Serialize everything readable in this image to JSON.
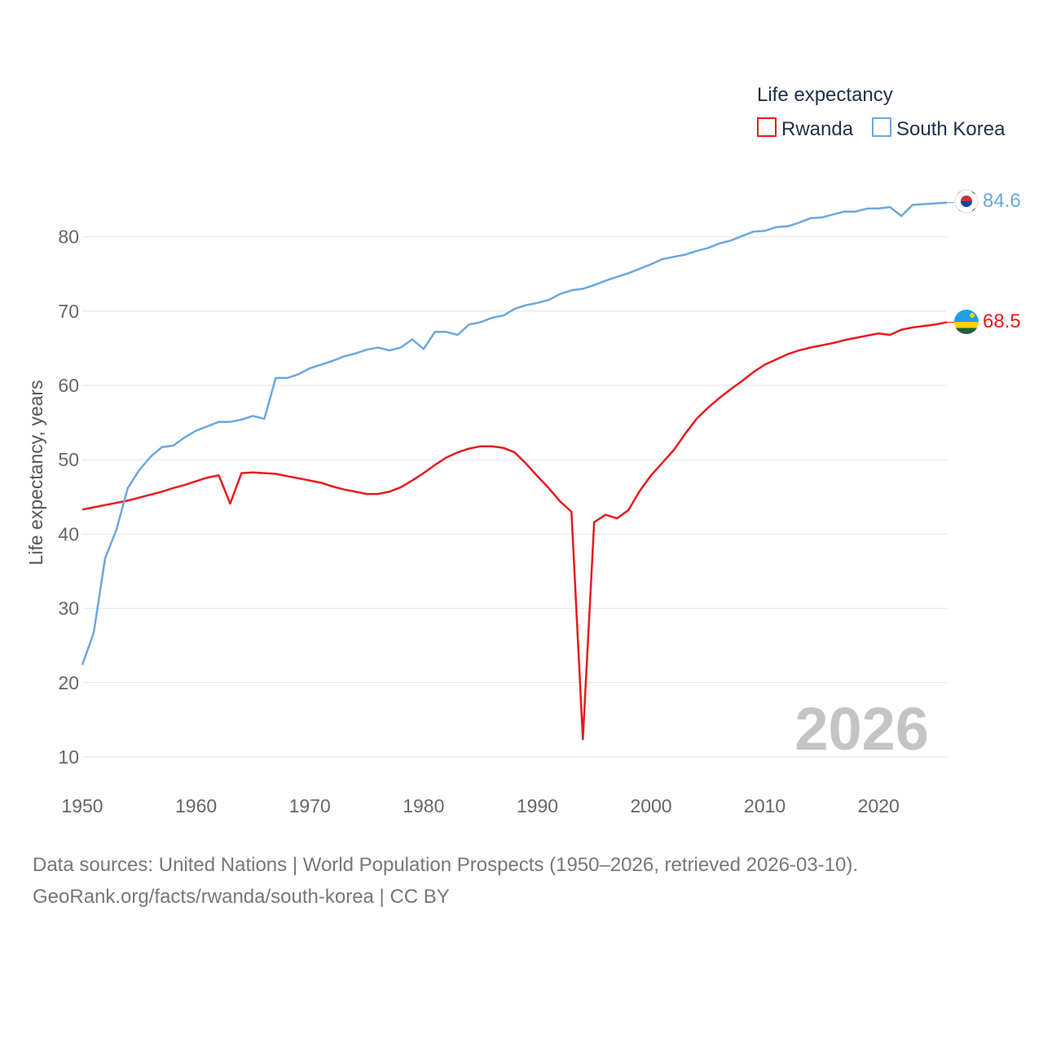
{
  "legend": {
    "title": "Life expectancy",
    "items": [
      {
        "label": "Rwanda",
        "color": "#e8191e"
      },
      {
        "label": "South Korea",
        "color": "#6aa8e0"
      }
    ]
  },
  "footer": {
    "line1": "Data sources: United Nations | World Population Prospects (1950–2026, retrieved 2026-03-10).",
    "line2": "GeoRank.org/facts/rwanda/south-korea | CC BY"
  },
  "chart_data": {
    "type": "line",
    "title": "Life expectancy",
    "xlabel": "",
    "ylabel": "Life expectancy, years",
    "xlim": [
      1950,
      2026
    ],
    "ylim": [
      10,
      90
    ],
    "x_ticks": [
      1950,
      1960,
      1970,
      1980,
      1990,
      2000,
      2010,
      2020
    ],
    "y_ticks": [
      10,
      20,
      30,
      40,
      50,
      60,
      70,
      80
    ],
    "grid": true,
    "year_marker": "2026",
    "x": [
      1950,
      1951,
      1952,
      1953,
      1954,
      1955,
      1956,
      1957,
      1958,
      1959,
      1960,
      1961,
      1962,
      1963,
      1964,
      1965,
      1966,
      1967,
      1968,
      1969,
      1970,
      1971,
      1972,
      1973,
      1974,
      1975,
      1976,
      1977,
      1978,
      1979,
      1980,
      1981,
      1982,
      1983,
      1984,
      1985,
      1986,
      1987,
      1988,
      1989,
      1990,
      1991,
      1992,
      1993,
      1994,
      1995,
      1996,
      1997,
      1998,
      1999,
      2000,
      2001,
      2002,
      2003,
      2004,
      2005,
      2006,
      2007,
      2008,
      2009,
      2010,
      2011,
      2012,
      2013,
      2014,
      2015,
      2016,
      2017,
      2018,
      2019,
      2020,
      2021,
      2022,
      2023,
      2024,
      2025,
      2026
    ],
    "series": [
      {
        "name": "Rwanda",
        "color": "#e8191e",
        "end_label": "68.5",
        "values": [
          43.3,
          43.6,
          43.9,
          44.2,
          44.5,
          44.9,
          45.3,
          45.7,
          46.2,
          46.6,
          47.1,
          47.6,
          47.9,
          44.1,
          48.2,
          48.3,
          48.2,
          48.1,
          47.8,
          47.5,
          47.2,
          46.9,
          46.4,
          46.0,
          45.7,
          45.4,
          45.4,
          45.7,
          46.3,
          47.2,
          48.2,
          49.3,
          50.3,
          51.0,
          51.5,
          51.8,
          51.8,
          51.6,
          51.0,
          49.5,
          47.8,
          46.2,
          44.4,
          43.0,
          12.4,
          41.6,
          42.6,
          42.1,
          43.2,
          45.8,
          47.9,
          49.6,
          51.3,
          53.5,
          55.5,
          57.0,
          58.3,
          59.5,
          60.6,
          61.8,
          62.8,
          63.5,
          64.2,
          64.7,
          65.1,
          65.4,
          65.7,
          66.1,
          66.4,
          66.7,
          67.0,
          66.8,
          67.5,
          67.8,
          68.0,
          68.2,
          68.5
        ]
      },
      {
        "name": "South Korea",
        "color": "#6aa8e0",
        "end_label": "84.6",
        "values": [
          22.4,
          26.7,
          36.7,
          40.6,
          46.2,
          48.6,
          50.4,
          51.7,
          51.9,
          53.0,
          53.9,
          54.5,
          55.1,
          55.1,
          55.4,
          55.9,
          55.5,
          61.0,
          61.0,
          61.5,
          62.3,
          62.8,
          63.3,
          63.9,
          64.3,
          64.8,
          65.1,
          64.7,
          65.1,
          66.2,
          64.9,
          67.2,
          67.2,
          66.8,
          68.2,
          68.5,
          69.1,
          69.4,
          70.3,
          70.8,
          71.1,
          71.5,
          72.3,
          72.8,
          73.0,
          73.5,
          74.1,
          74.6,
          75.1,
          75.7,
          76.3,
          77.0,
          77.3,
          77.6,
          78.1,
          78.5,
          79.1,
          79.5,
          80.1,
          80.7,
          80.8,
          81.3,
          81.4,
          81.9,
          82.5,
          82.6,
          83.0,
          83.4,
          83.4,
          83.8,
          83.8,
          84.0,
          82.8,
          84.3,
          84.4,
          84.5,
          84.6
        ]
      }
    ]
  }
}
